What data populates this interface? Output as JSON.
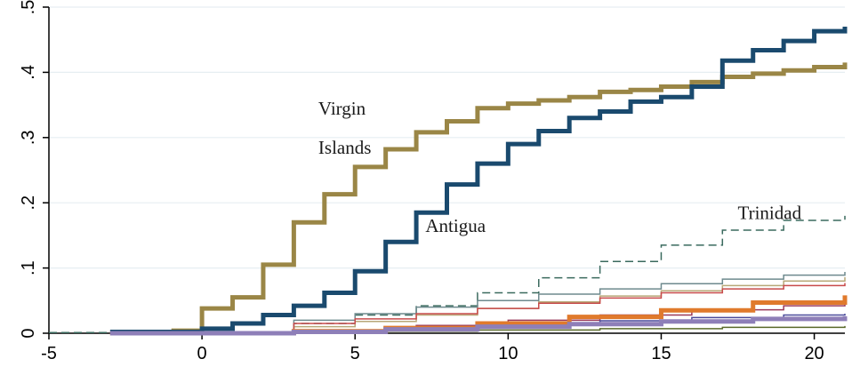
{
  "chart_data": {
    "type": "line",
    "title": "",
    "xlabel": "",
    "ylabel": "",
    "xlim": [
      -5,
      21
    ],
    "ylim": [
      0,
      0.5
    ],
    "x_ticks": [
      -5,
      0,
      5,
      10,
      15,
      20
    ],
    "x_tick_labels": [
      "-5",
      "0",
      "5",
      "10",
      "15",
      "20"
    ],
    "y_ticks": [
      0,
      0.1,
      0.2,
      0.3,
      0.4,
      0.5
    ],
    "y_tick_labels": [
      "0",
      ".1",
      ".2",
      ".3",
      ".4",
      ".5"
    ],
    "grid": "horizontal",
    "legend": "none",
    "annotations": [
      {
        "id": "virgin-1",
        "text": "Virgin",
        "x": 3.8,
        "y": 0.335
      },
      {
        "id": "virgin-2",
        "text": "Islands",
        "x": 3.8,
        "y": 0.275
      },
      {
        "id": "antigua",
        "text": "Antigua",
        "x": 7.3,
        "y": 0.155
      },
      {
        "id": "trinidad",
        "text": "Trinidad",
        "x": 17.5,
        "y": 0.175
      }
    ],
    "series": [
      {
        "name": "Virgin Islands",
        "color": "#9a8646",
        "width": 5,
        "step": true,
        "x": [
          -1,
          0,
          1,
          2,
          3,
          4,
          5,
          6,
          7,
          8,
          9,
          10,
          11,
          12,
          13,
          14,
          15,
          16,
          17,
          18,
          19,
          20,
          21
        ],
        "y": [
          0.004,
          0.038,
          0.055,
          0.105,
          0.17,
          0.213,
          0.255,
          0.282,
          0.308,
          0.325,
          0.345,
          0.352,
          0.357,
          0.362,
          0.37,
          0.373,
          0.378,
          0.385,
          0.393,
          0.398,
          0.403,
          0.408,
          0.415
        ]
      },
      {
        "name": "Antigua",
        "color": "#1a4a6e",
        "width": 5,
        "step": true,
        "x": [
          -3,
          0,
          1,
          2,
          3,
          4,
          5,
          6,
          7,
          8,
          9,
          10,
          11,
          12,
          13,
          14,
          15,
          16,
          17,
          18,
          19,
          20,
          21
        ],
        "y": [
          0.002,
          0.007,
          0.015,
          0.028,
          0.042,
          0.062,
          0.095,
          0.14,
          0.185,
          0.228,
          0.26,
          0.29,
          0.31,
          0.33,
          0.34,
          0.355,
          0.362,
          0.378,
          0.418,
          0.434,
          0.448,
          0.463,
          0.47
        ]
      },
      {
        "name": "Trinidad",
        "color": "#3a6a5e",
        "width": 1.5,
        "dash": "9,5",
        "step": true,
        "x": [
          -5,
          3,
          5,
          7,
          9,
          11,
          13,
          15,
          17,
          19,
          21
        ],
        "y": [
          0.001,
          0.015,
          0.028,
          0.042,
          0.062,
          0.085,
          0.11,
          0.135,
          0.158,
          0.173,
          0.18
        ]
      },
      {
        "color": "#e07a2c",
        "width": 5,
        "step": true,
        "x": [
          -3,
          3,
          6,
          9,
          12,
          15,
          18,
          21
        ],
        "y": [
          0.0,
          0.003,
          0.008,
          0.015,
          0.025,
          0.035,
          0.047,
          0.058
        ]
      },
      {
        "color": "#8e7fb8",
        "width": 5,
        "step": true,
        "x": [
          -3,
          3,
          6,
          9,
          12,
          15,
          18,
          21
        ],
        "y": [
          0.0,
          0.002,
          0.006,
          0.01,
          0.014,
          0.018,
          0.022,
          0.026
        ]
      },
      {
        "color": "#6e8a8e",
        "width": 1.5,
        "step": true,
        "x": [
          -3,
          3,
          5,
          7,
          9,
          11,
          13,
          15,
          17,
          19,
          21
        ],
        "y": [
          0.0,
          0.02,
          0.03,
          0.04,
          0.05,
          0.06,
          0.068,
          0.076,
          0.083,
          0.089,
          0.094
        ]
      },
      {
        "color": "#b8a878",
        "width": 1.5,
        "step": true,
        "x": [
          -3,
          3,
          5,
          7,
          9,
          11,
          13,
          15,
          17,
          19,
          21
        ],
        "y": [
          0.0,
          0.01,
          0.018,
          0.028,
          0.038,
          0.048,
          0.057,
          0.065,
          0.073,
          0.08,
          0.086
        ]
      },
      {
        "color": "#c84a4a",
        "width": 1.5,
        "step": true,
        "x": [
          -3,
          3,
          5,
          7,
          9,
          11,
          13,
          15,
          17,
          19,
          21
        ],
        "y": [
          0.0,
          0.015,
          0.022,
          0.03,
          0.038,
          0.046,
          0.054,
          0.062,
          0.068,
          0.073,
          0.077
        ]
      },
      {
        "color": "#9a3a5a",
        "width": 1.5,
        "step": true,
        "x": [
          -3,
          4,
          7,
          10,
          13,
          16,
          19,
          21
        ],
        "y": [
          0.0,
          0.005,
          0.012,
          0.02,
          0.028,
          0.036,
          0.042,
          0.046
        ]
      },
      {
        "color": "#4a4a9a",
        "width": 1.5,
        "step": true,
        "x": [
          -3,
          4,
          7,
          10,
          13,
          16,
          19,
          21
        ],
        "y": [
          0.0,
          0.004,
          0.009,
          0.014,
          0.019,
          0.024,
          0.028,
          0.03
        ]
      },
      {
        "color": "#5a6a2a",
        "width": 1.5,
        "step": true,
        "x": [
          -3,
          5,
          9,
          13,
          17,
          21
        ],
        "y": [
          0.0,
          0.003,
          0.005,
          0.007,
          0.009,
          0.011
        ]
      }
    ]
  }
}
